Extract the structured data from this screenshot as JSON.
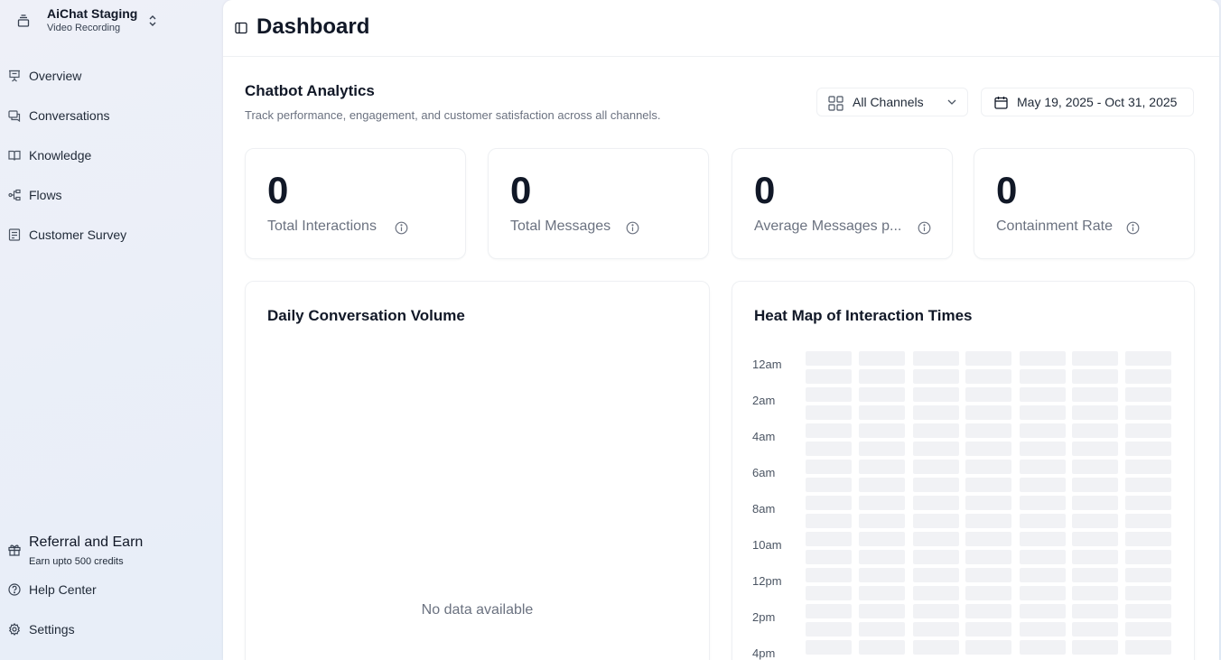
{
  "workspace": {
    "name": "AiChat Staging",
    "subtitle": "Video Recording"
  },
  "sidebar": {
    "items": [
      {
        "label": "Overview",
        "icon": "presentation-icon"
      },
      {
        "label": "Conversations",
        "icon": "chat-icon"
      },
      {
        "label": "Knowledge",
        "icon": "book-icon"
      },
      {
        "label": "Flows",
        "icon": "flow-icon"
      },
      {
        "label": "Customer Survey",
        "icon": "survey-icon"
      }
    ],
    "referral": {
      "title": "Referral and Earn",
      "subtitle": "Earn upto 500 credits"
    },
    "help_label": "Help Center",
    "settings_label": "Settings"
  },
  "header": {
    "title": "Dashboard"
  },
  "analytics": {
    "title": "Chatbot Analytics",
    "description": "Track performance, engagement, and customer satisfaction across all channels.",
    "channel_filter": "All Channels",
    "date_range": "May 19, 2025 - Oct 31, 2025"
  },
  "stats": [
    {
      "value": "0",
      "label": "Total Interactions"
    },
    {
      "value": "0",
      "label": "Total Messages"
    },
    {
      "value": "0",
      "label": "Average Messages p..."
    },
    {
      "value": "0",
      "label": "Containment Rate"
    }
  ],
  "daily_volume": {
    "title": "Daily Conversation Volume",
    "empty_text": "No data available"
  },
  "heatmap": {
    "title": "Heat Map of Interaction Times",
    "row_labels": [
      "12am",
      "2am",
      "4am",
      "6am",
      "8am",
      "10am",
      "12pm",
      "2pm",
      "4pm"
    ]
  },
  "colors": {
    "accent_text": "#111827",
    "muted_text": "#6b7280",
    "heatmap_empty": "#f1f2f5"
  }
}
